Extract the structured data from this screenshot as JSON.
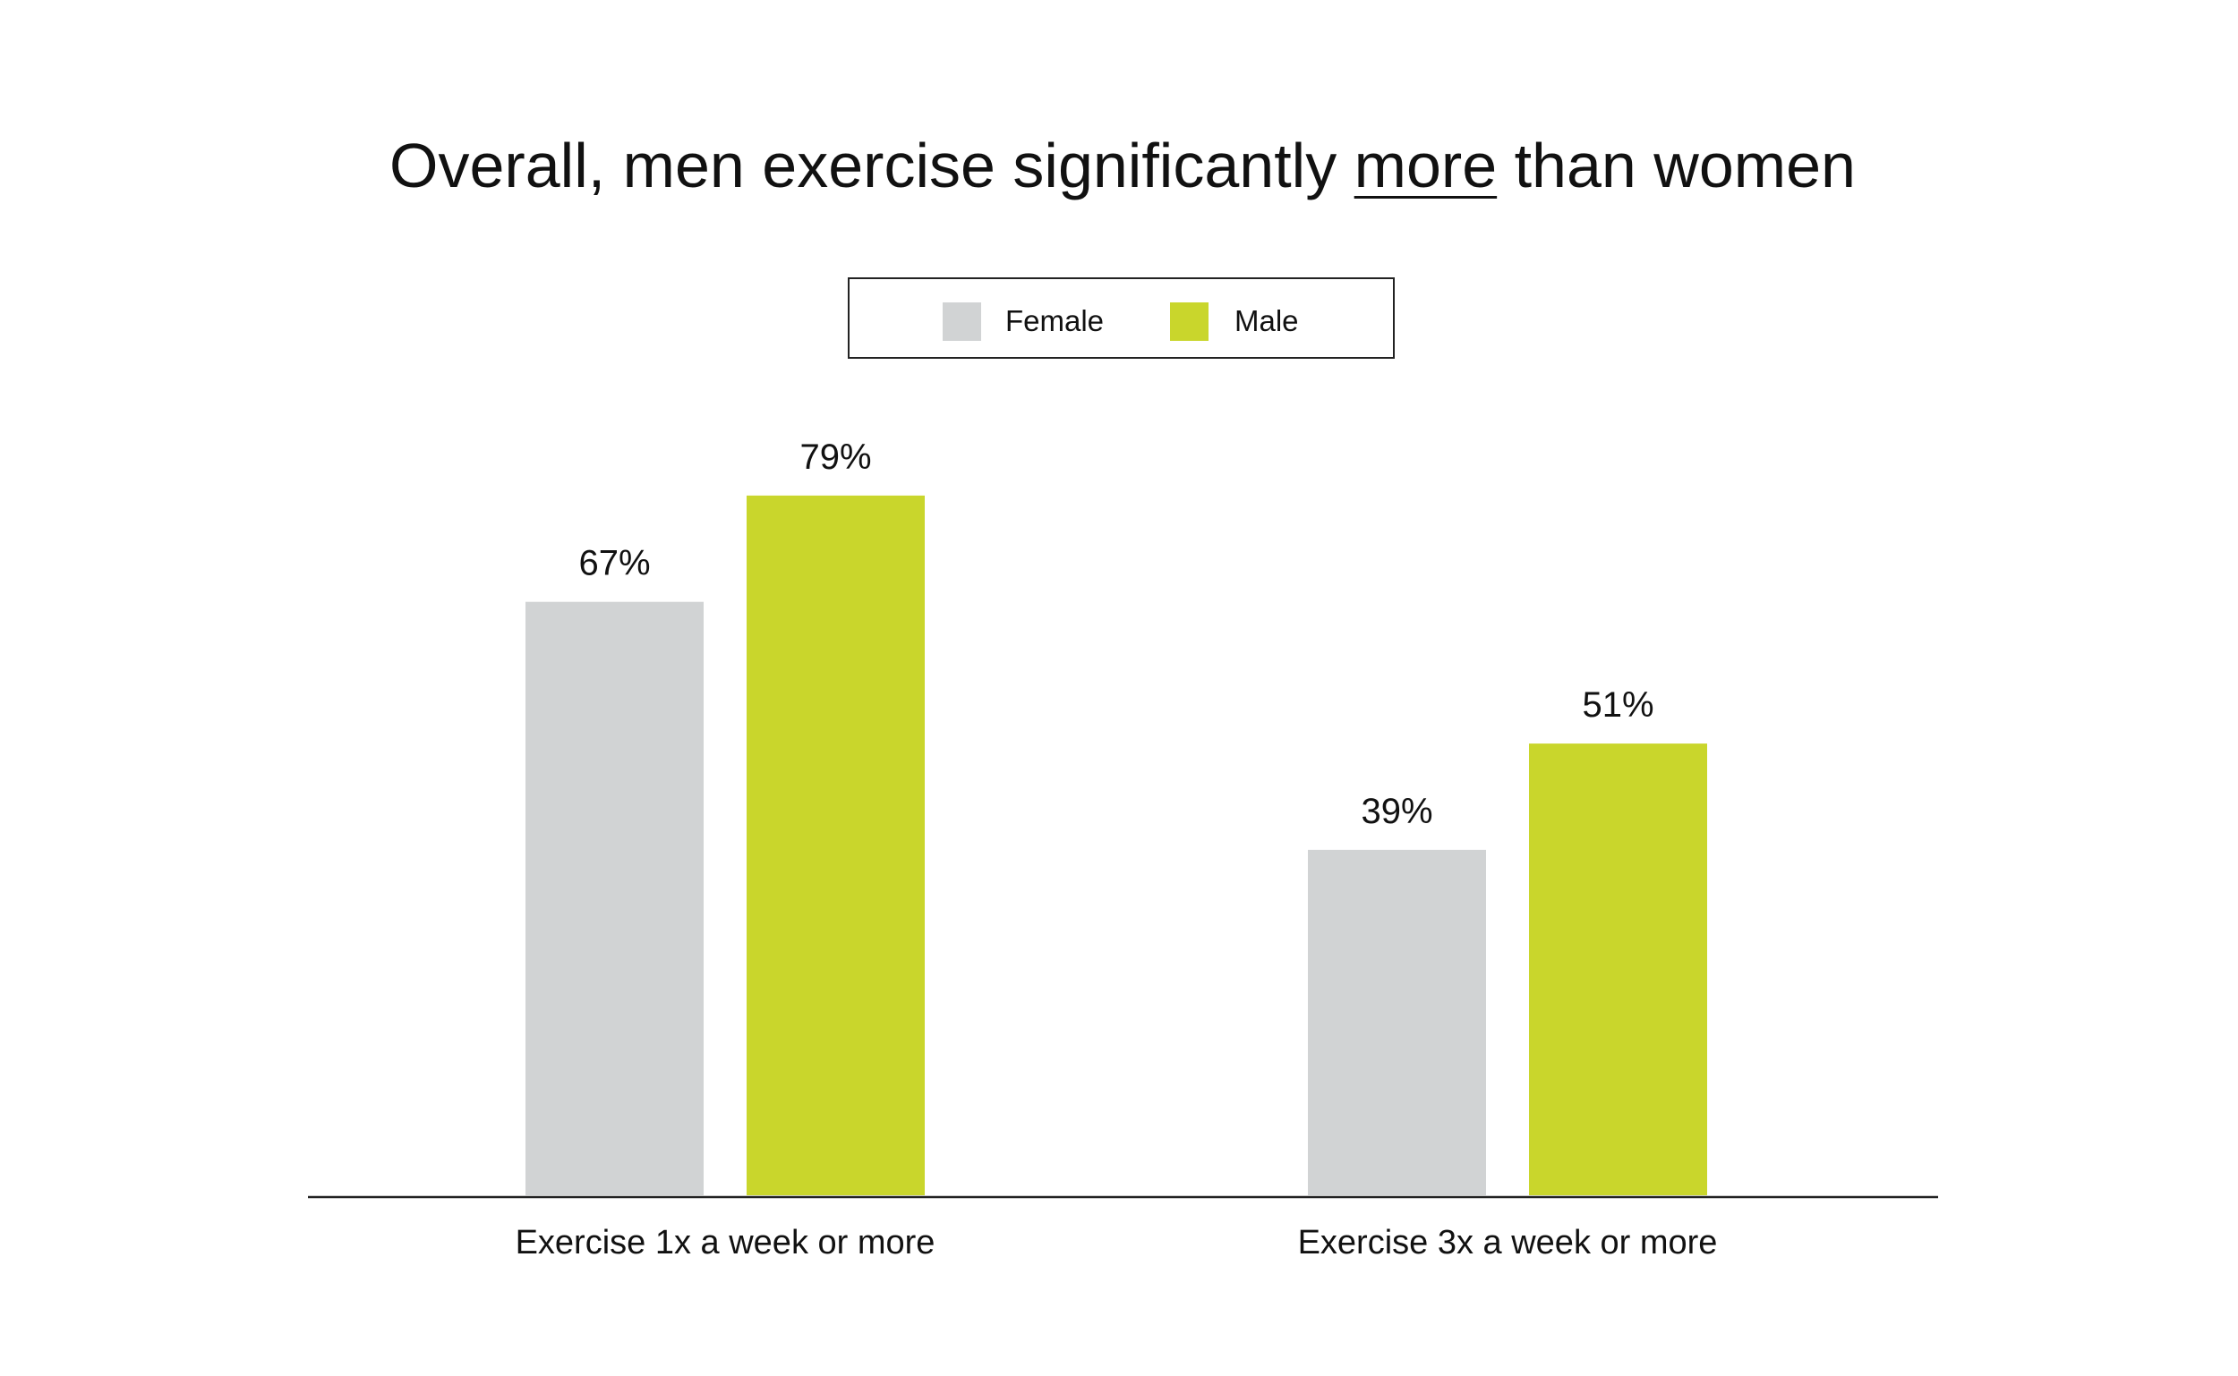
{
  "chart_data": {
    "type": "bar",
    "title": {
      "before": "Overall, men exercise significantly ",
      "emph": "more",
      "after": " than women"
    },
    "categories": [
      "Exercise 1x a week or more",
      "Exercise 3x a week or more"
    ],
    "series": [
      {
        "name": "Female",
        "color": "#d1d3d4",
        "values": [
          67,
          39
        ],
        "labels": [
          "67%",
          "39%"
        ]
      },
      {
        "name": "Male",
        "color": "#c9d62c",
        "values": [
          79,
          51
        ],
        "labels": [
          "79%",
          "51%"
        ]
      }
    ],
    "ylim": [
      0,
      100
    ],
    "grid": false,
    "legend_position": "top-center",
    "xlabel": "",
    "ylabel": ""
  }
}
